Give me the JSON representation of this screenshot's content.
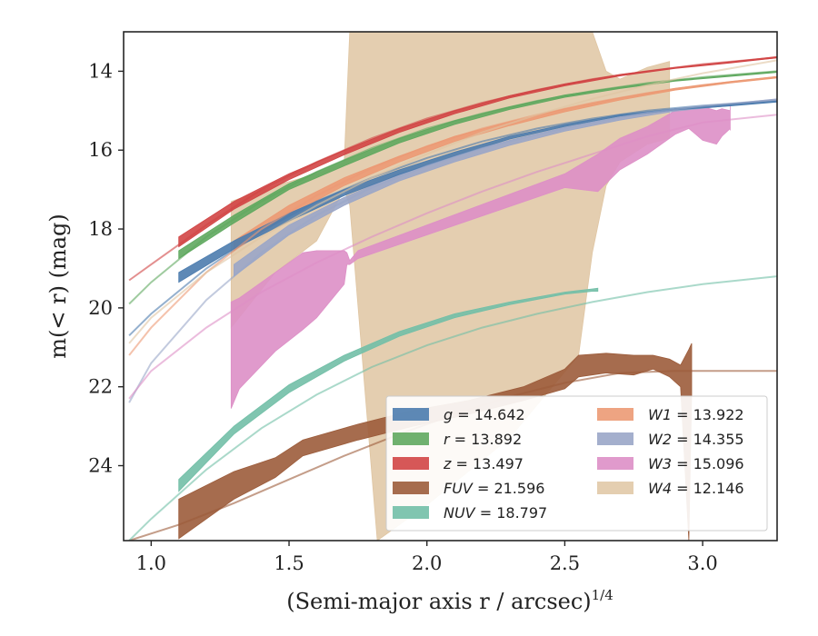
{
  "chart_data": {
    "type": "line",
    "xlabel": "(Semi-major axis r / arcsec)",
    "xlabel_superscript": "1/4",
    "ylabel": "m(< r) (mag)",
    "xlim": [
      0.9,
      3.27
    ],
    "ylim": [
      25.9,
      13.0
    ],
    "y_inverted": true,
    "x_ticks": [
      1.0,
      1.5,
      2.0,
      2.5,
      3.0
    ],
    "x_tick_labels": [
      "1.0",
      "1.5",
      "2.0",
      "2.5",
      "3.0"
    ],
    "y_ticks": [
      14,
      16,
      18,
      20,
      22,
      24
    ],
    "y_tick_labels": [
      "14",
      "16",
      "18",
      "20",
      "22",
      "24"
    ],
    "grid": false,
    "legend_position": "lower-right",
    "legend_columns": 2,
    "series": [
      {
        "key": "g",
        "name": "g = 14.642",
        "color": "#4c7cae",
        "model": [
          [
            0.92,
            20.7
          ],
          [
            1.0,
            20.15
          ],
          [
            1.2,
            19.0
          ],
          [
            1.4,
            18.05
          ],
          [
            1.6,
            17.3
          ],
          [
            1.8,
            16.7
          ],
          [
            2.0,
            16.2
          ],
          [
            2.2,
            15.78
          ],
          [
            2.4,
            15.45
          ],
          [
            2.6,
            15.2
          ],
          [
            2.8,
            15.0
          ],
          [
            3.0,
            14.87
          ],
          [
            3.27,
            14.75
          ]
        ],
        "band": [
          [
            1.1,
            19.1,
            19.35
          ],
          [
            1.3,
            18.3,
            18.5
          ],
          [
            1.5,
            17.6,
            17.8
          ],
          [
            1.7,
            17.0,
            17.15
          ],
          [
            1.9,
            16.5,
            16.62
          ],
          [
            2.1,
            16.05,
            16.15
          ],
          [
            2.3,
            15.65,
            15.72
          ],
          [
            2.5,
            15.35,
            15.4
          ],
          [
            2.7,
            15.1,
            15.14
          ],
          [
            2.9,
            14.95,
            14.98
          ],
          [
            3.1,
            14.85,
            14.88
          ],
          [
            3.27,
            14.75,
            14.78
          ]
        ]
      },
      {
        "key": "r",
        "name": "r = 13.892",
        "color": "#5fa95f",
        "model": [
          [
            0.92,
            19.9
          ],
          [
            1.0,
            19.35
          ],
          [
            1.2,
            18.2
          ],
          [
            1.4,
            17.3
          ],
          [
            1.6,
            16.55
          ],
          [
            1.8,
            15.95
          ],
          [
            2.0,
            15.45
          ],
          [
            2.2,
            15.07
          ],
          [
            2.4,
            14.75
          ],
          [
            2.6,
            14.5
          ],
          [
            2.8,
            14.3
          ],
          [
            3.0,
            14.15
          ],
          [
            3.27,
            14.0
          ]
        ],
        "band": [
          [
            1.1,
            18.55,
            18.75
          ],
          [
            1.3,
            17.65,
            17.85
          ],
          [
            1.5,
            16.85,
            17.0
          ],
          [
            1.7,
            16.25,
            16.4
          ],
          [
            1.9,
            15.7,
            15.82
          ],
          [
            2.1,
            15.25,
            15.35
          ],
          [
            2.3,
            14.9,
            14.97
          ],
          [
            2.5,
            14.6,
            14.66
          ],
          [
            2.7,
            14.4,
            14.44
          ],
          [
            2.9,
            14.22,
            14.25
          ],
          [
            3.1,
            14.1,
            14.13
          ],
          [
            3.27,
            14.0,
            14.03
          ]
        ]
      },
      {
        "key": "z",
        "name": "z = 13.497",
        "color": "#d14545",
        "model": [
          [
            0.92,
            19.3
          ],
          [
            1.0,
            18.9
          ],
          [
            1.2,
            17.9
          ],
          [
            1.4,
            17.0
          ],
          [
            1.6,
            16.3
          ],
          [
            1.8,
            15.7
          ],
          [
            2.0,
            15.2
          ],
          [
            2.2,
            14.8
          ],
          [
            2.4,
            14.47
          ],
          [
            2.6,
            14.2
          ],
          [
            2.8,
            14.0
          ],
          [
            3.0,
            13.82
          ],
          [
            3.27,
            13.65
          ]
        ],
        "band": [
          [
            1.1,
            18.2,
            18.45
          ],
          [
            1.3,
            17.3,
            17.5
          ],
          [
            1.5,
            16.6,
            16.75
          ],
          [
            1.7,
            16.0,
            16.12
          ],
          [
            1.9,
            15.45,
            15.55
          ],
          [
            2.1,
            15.0,
            15.08
          ],
          [
            2.3,
            14.62,
            14.68
          ],
          [
            2.5,
            14.32,
            14.37
          ],
          [
            2.7,
            14.08,
            14.12
          ],
          [
            2.9,
            13.9,
            13.93
          ],
          [
            3.1,
            13.76,
            13.79
          ],
          [
            3.27,
            13.63,
            13.66
          ]
        ]
      },
      {
        "key": "FUV",
        "name": "FUV = 21.596",
        "color": "#9c5c3b",
        "model": [
          [
            0.92,
            25.9
          ],
          [
            1.1,
            25.5
          ],
          [
            1.3,
            24.95
          ],
          [
            1.5,
            24.35
          ],
          [
            1.7,
            23.75
          ],
          [
            1.9,
            23.2
          ],
          [
            2.1,
            22.7
          ],
          [
            2.3,
            22.25
          ],
          [
            2.5,
            21.9
          ],
          [
            2.7,
            21.65
          ],
          [
            2.9,
            21.6
          ],
          [
            3.27,
            21.6
          ]
        ],
        "band": [
          [
            1.1,
            24.85,
            25.85
          ],
          [
            1.3,
            24.15,
            24.85
          ],
          [
            1.45,
            23.8,
            24.3
          ],
          [
            1.55,
            23.35,
            23.75
          ],
          [
            1.75,
            22.95,
            23.35
          ],
          [
            1.95,
            22.6,
            23.0
          ],
          [
            2.15,
            22.35,
            22.7
          ],
          [
            2.35,
            22.0,
            22.35
          ],
          [
            2.5,
            21.55,
            22.05
          ],
          [
            2.55,
            21.2,
            21.75
          ],
          [
            2.65,
            21.15,
            21.65
          ],
          [
            2.75,
            21.2,
            21.7
          ],
          [
            2.82,
            21.2,
            21.55
          ],
          [
            2.88,
            21.3,
            21.75
          ],
          [
            2.92,
            21.45,
            22.0
          ],
          [
            2.95,
            21.05,
            25.9
          ],
          [
            2.96,
            20.9,
            22.2
          ]
        ]
      },
      {
        "key": "NUV",
        "name": "NUV = 18.797",
        "color": "#72bfa7",
        "model": [
          [
            0.92,
            25.9
          ],
          [
            1.0,
            25.35
          ],
          [
            1.2,
            24.1
          ],
          [
            1.4,
            23.05
          ],
          [
            1.6,
            22.2
          ],
          [
            1.8,
            21.5
          ],
          [
            2.0,
            20.95
          ],
          [
            2.2,
            20.5
          ],
          [
            2.4,
            20.15
          ],
          [
            2.6,
            19.85
          ],
          [
            2.8,
            19.6
          ],
          [
            3.0,
            19.4
          ],
          [
            3.27,
            19.2
          ]
        ],
        "band": [
          [
            1.1,
            24.35,
            24.65
          ],
          [
            1.3,
            23.0,
            23.2
          ],
          [
            1.5,
            21.95,
            22.15
          ],
          [
            1.7,
            21.2,
            21.35
          ],
          [
            1.9,
            20.6,
            20.72
          ],
          [
            2.1,
            20.15,
            20.25
          ],
          [
            2.3,
            19.85,
            19.92
          ],
          [
            2.5,
            19.6,
            19.65
          ],
          [
            2.6,
            19.52,
            19.58
          ],
          [
            2.62,
            19.5,
            19.58
          ]
        ]
      },
      {
        "key": "W1",
        "name": "W1 = 13.922",
        "color": "#ec9a74",
        "model": [
          [
            0.92,
            21.2
          ],
          [
            1.0,
            20.5
          ],
          [
            1.2,
            19.1
          ],
          [
            1.4,
            18.0
          ],
          [
            1.6,
            17.15
          ],
          [
            1.8,
            16.45
          ],
          [
            2.0,
            15.9
          ],
          [
            2.2,
            15.45
          ],
          [
            2.4,
            15.1
          ],
          [
            2.6,
            14.8
          ],
          [
            2.8,
            14.55
          ],
          [
            3.0,
            14.35
          ],
          [
            3.27,
            14.15
          ]
        ],
        "band": [
          [
            1.3,
            18.3,
            18.55
          ],
          [
            1.5,
            17.4,
            17.65
          ],
          [
            1.7,
            16.7,
            16.9
          ],
          [
            1.9,
            16.15,
            16.3
          ],
          [
            2.1,
            15.65,
            15.78
          ],
          [
            2.3,
            15.28,
            15.38
          ],
          [
            2.5,
            14.95,
            15.03
          ],
          [
            2.7,
            14.67,
            14.73
          ],
          [
            2.9,
            14.43,
            14.48
          ],
          [
            3.1,
            14.26,
            14.3
          ],
          [
            3.27,
            14.13,
            14.17
          ]
        ]
      },
      {
        "key": "W2",
        "name": "W2 = 14.355",
        "color": "#9aa6c8",
        "model": [
          [
            0.92,
            22.4
          ],
          [
            1.0,
            21.4
          ],
          [
            1.2,
            19.8
          ],
          [
            1.4,
            18.6
          ],
          [
            1.6,
            17.65
          ],
          [
            1.8,
            16.95
          ],
          [
            2.0,
            16.4
          ],
          [
            2.2,
            15.95
          ],
          [
            2.4,
            15.6
          ],
          [
            2.6,
            15.3
          ],
          [
            2.8,
            15.05
          ],
          [
            3.0,
            14.88
          ],
          [
            3.27,
            14.72
          ]
        ],
        "band": [
          [
            1.3,
            18.9,
            19.2
          ],
          [
            1.5,
            17.9,
            18.15
          ],
          [
            1.7,
            17.2,
            17.4
          ],
          [
            1.9,
            16.6,
            16.78
          ],
          [
            2.1,
            16.15,
            16.3
          ],
          [
            2.3,
            15.75,
            15.88
          ],
          [
            2.5,
            15.42,
            15.52
          ],
          [
            2.7,
            15.16,
            15.24
          ],
          [
            2.9,
            14.95,
            15.01
          ],
          [
            3.1,
            14.82,
            14.87
          ],
          [
            3.27,
            14.7,
            14.75
          ]
        ]
      },
      {
        "key": "W3",
        "name": "W3 = 15.096",
        "color": "#dd8fc6",
        "model": [
          [
            0.92,
            22.3
          ],
          [
            1.0,
            21.6
          ],
          [
            1.2,
            20.5
          ],
          [
            1.4,
            19.6
          ],
          [
            1.6,
            18.85
          ],
          [
            1.8,
            18.2
          ],
          [
            2.0,
            17.6
          ],
          [
            2.2,
            17.05
          ],
          [
            2.4,
            16.55
          ],
          [
            2.6,
            16.1
          ],
          [
            2.8,
            15.65
          ],
          [
            3.0,
            15.3
          ],
          [
            3.27,
            15.1
          ]
        ],
        "band": [
          [
            1.29,
            19.85,
            22.55
          ],
          [
            1.32,
            19.75,
            22.05
          ],
          [
            1.45,
            19.1,
            21.1
          ],
          [
            1.55,
            18.6,
            20.55
          ],
          [
            1.6,
            18.55,
            20.25
          ],
          [
            1.7,
            18.55,
            19.4
          ],
          [
            1.71,
            18.6,
            18.9
          ],
          [
            1.72,
            18.8,
            18.9
          ],
          [
            1.75,
            18.55,
            18.75
          ],
          [
            2.5,
            16.6,
            16.95
          ],
          [
            2.62,
            16.1,
            17.05
          ],
          [
            2.7,
            15.7,
            16.5
          ],
          [
            2.8,
            15.4,
            16.1
          ],
          [
            2.9,
            15.0,
            15.6
          ],
          [
            2.95,
            14.95,
            15.45
          ],
          [
            3.0,
            14.9,
            15.75
          ],
          [
            3.05,
            15.0,
            15.85
          ],
          [
            3.07,
            14.95,
            15.65
          ],
          [
            3.1,
            15.0,
            15.45
          ],
          [
            3.1,
            14.85,
            15.5
          ]
        ]
      },
      {
        "key": "W4",
        "name": "W4 = 12.146",
        "color": "#dfc5a2",
        "model": [
          [
            0.92,
            20.9
          ],
          [
            1.0,
            20.25
          ],
          [
            1.2,
            19.1
          ],
          [
            1.4,
            18.2
          ],
          [
            1.6,
            17.4
          ],
          [
            1.8,
            16.7
          ],
          [
            2.0,
            16.1
          ],
          [
            2.2,
            15.55
          ],
          [
            2.4,
            15.1
          ],
          [
            2.6,
            14.7
          ],
          [
            2.8,
            14.35
          ],
          [
            3.0,
            14.05
          ],
          [
            3.27,
            13.72
          ]
        ],
        "band": [
          [
            1.29,
            17.3,
            20.5
          ],
          [
            1.45,
            16.9,
            19.1
          ],
          [
            1.6,
            16.6,
            18.3
          ],
          [
            1.7,
            16.3,
            17.0
          ],
          [
            1.72,
            13.0,
            17.4
          ],
          [
            1.82,
            13.0,
            25.9
          ],
          [
            2.0,
            13.0,
            25.0
          ],
          [
            2.3,
            13.0,
            23.3
          ],
          [
            2.55,
            13.0,
            21.2
          ],
          [
            2.6,
            13.0,
            18.6
          ],
          [
            2.65,
            14.0,
            16.9
          ],
          [
            2.7,
            14.2,
            16.3
          ],
          [
            2.8,
            13.9,
            15.85
          ],
          [
            2.88,
            13.75,
            15.7
          ]
        ]
      }
    ],
    "legend": {
      "left_column": [
        {
          "var": "g",
          "rest": " = 14.642"
        },
        {
          "var": "r",
          "rest": " = 13.892"
        },
        {
          "var": "z",
          "rest": " = 13.497"
        },
        {
          "var": "FUV",
          "rest": " = 21.596"
        },
        {
          "var": "NUV",
          "rest": " = 18.797"
        }
      ],
      "right_column": [
        {
          "var": "W1",
          "rest": " = 13.922"
        },
        {
          "var": "W2",
          "rest": " = 14.355"
        },
        {
          "var": "W3",
          "rest": " = 15.096"
        },
        {
          "var": "W4",
          "rest": " = 12.146"
        }
      ]
    }
  }
}
